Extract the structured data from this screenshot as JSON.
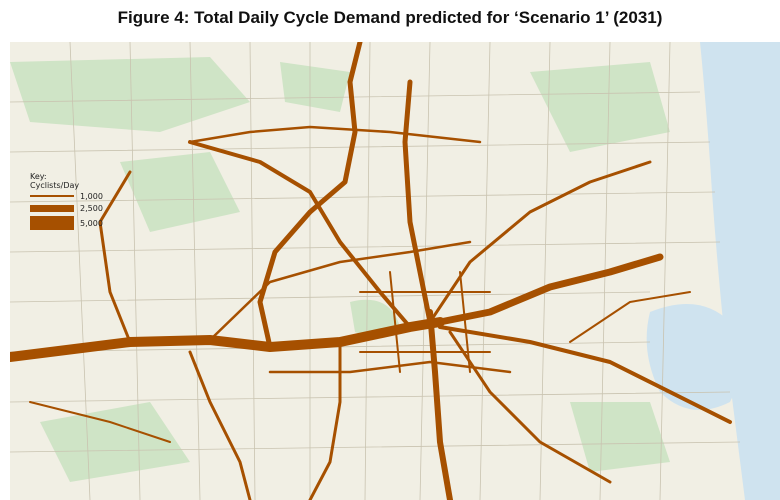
{
  "header": {
    "title": "Figure 4: Total Daily Cycle Demand predicted for ‘Scenario 1’ (2031)"
  },
  "legend": {
    "title": "Key:",
    "subtitle": "Cyclists/Day",
    "items": [
      {
        "value": 1000,
        "label": "1,000"
      },
      {
        "value": 2500,
        "label": "2,500"
      },
      {
        "value": 5000,
        "label": "5,000"
      }
    ]
  }
}
